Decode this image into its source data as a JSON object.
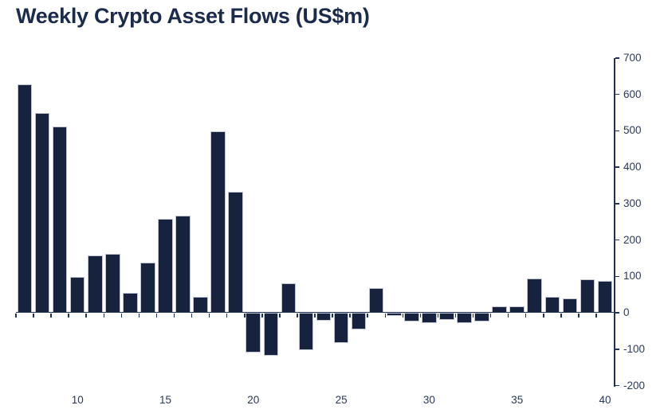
{
  "title": "Weekly Crypto Asset Flows (US$m)",
  "colors": {
    "background": "#FFFFFF",
    "bar_fill": "#17233E",
    "bar_border": "#BFC6D2",
    "axis_line": "#223456",
    "title_text": "#1B2B4C",
    "tick_text": "#2A3A59"
  },
  "chart_data": {
    "type": "bar",
    "title": "Weekly Crypto Asset Flows (US$m)",
    "xlabel": "",
    "ylabel": "",
    "x": [
      7,
      8,
      9,
      10,
      11,
      12,
      13,
      14,
      15,
      16,
      17,
      18,
      19,
      20,
      21,
      22,
      23,
      24,
      25,
      26,
      27,
      28,
      29,
      30,
      31,
      32,
      33,
      34,
      35,
      36,
      37,
      38,
      39,
      40
    ],
    "values": [
      628,
      550,
      512,
      98,
      158,
      162,
      54,
      139,
      258,
      267,
      44,
      498,
      332,
      -109,
      -119,
      80,
      -102,
      -22,
      -84,
      -46,
      68,
      -9,
      -25,
      -28,
      -20,
      -29,
      -23,
      18,
      17,
      95,
      44,
      40,
      93,
      87
    ],
    "ylim": [
      -200,
      700
    ],
    "yticks": [
      700,
      600,
      500,
      400,
      300,
      200,
      100,
      0,
      -100,
      -200
    ],
    "xtick_labels": [
      10,
      15,
      20,
      25,
      30,
      35,
      40
    ],
    "grid": false,
    "legend": false,
    "y_axis_side": "right",
    "bar_color": "#17233E"
  }
}
